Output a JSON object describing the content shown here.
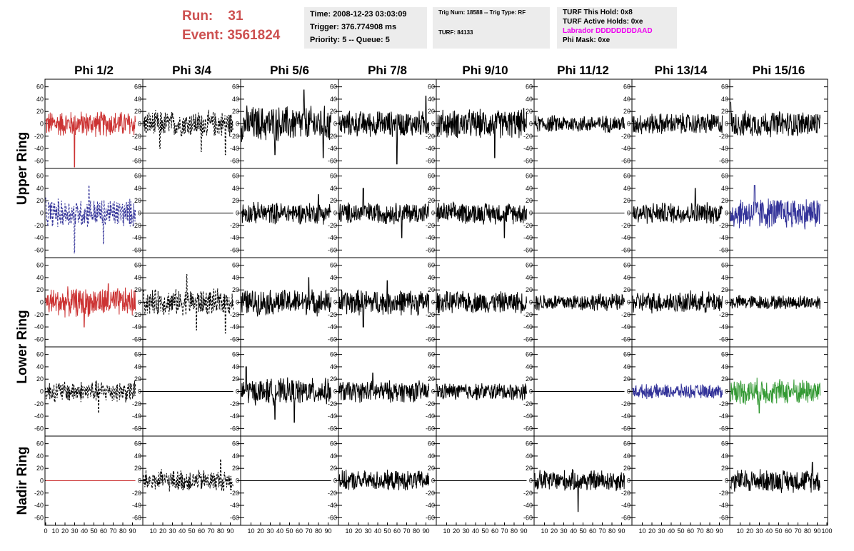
{
  "header": {
    "run_label": "Run:",
    "run_value": "31",
    "event_label": "Event:",
    "event_value": "3561824"
  },
  "info_box_1": {
    "time": "Time: 2008-12-23 03:03:09",
    "trigger": "Trigger: 376.774908 ms",
    "priority": "Priority: 5 -- Queue: 5"
  },
  "info_box_2": {
    "trig": "Trig Num: 18588 -- Trig Type: RF",
    "turf": "TURF: 84133"
  },
  "info_box_3": {
    "this_hold": "TURF This Hold: 0x8",
    "active_holds": "TURF Active Holds: 0xe",
    "labrador": "Labrador DDDDDDDDAAD",
    "phi_mask": "Phi Mask: 0xe",
    "labrador_color": "#ee00ee"
  },
  "chart_data": {
    "type": "line",
    "columns": [
      "Phi 1/2",
      "Phi 3/4",
      "Phi 5/6",
      "Phi 7/8",
      "Phi 9/10",
      "Phi 11/12",
      "Phi 13/14",
      "Phi 15/16"
    ],
    "ring_labels": [
      "Upper Ring",
      "Lower Ring",
      "Nadir Ring"
    ],
    "ylim": [
      -70,
      70
    ],
    "yticks": [
      -60,
      -40,
      -20,
      0,
      20,
      40,
      60
    ],
    "xlim": [
      0,
      100
    ],
    "xticks": [
      0,
      10,
      20,
      30,
      40,
      50,
      60,
      70,
      80,
      90,
      100
    ],
    "colors": {
      "red": "#cc3333",
      "blue": "#333399",
      "green": "#339933",
      "black": "#000000"
    },
    "rows": [
      [
        {
          "color": "red",
          "amp": 18,
          "spikes": [
            [
              30,
              -70
            ]
          ]
        },
        {
          "color": "black",
          "amp": 18,
          "dashed": true,
          "spikes": [
            [
              17,
              -40
            ],
            [
              60,
              -45
            ],
            [
              85,
              -50
            ]
          ]
        },
        {
          "color": "black",
          "amp": 25,
          "spikes": [
            [
              65,
              55
            ],
            [
              85,
              -55
            ],
            [
              35,
              -50
            ]
          ]
        },
        {
          "color": "black",
          "amp": 18,
          "spikes": [
            [
              60,
              -65
            ],
            [
              90,
              45
            ]
          ]
        },
        {
          "color": "black",
          "amp": 20,
          "spikes": [
            [
              60,
              -55
            ],
            [
              90,
              25
            ]
          ]
        },
        {
          "color": "black",
          "amp": 12,
          "spikes": []
        },
        {
          "color": "black",
          "amp": 15,
          "spikes": []
        },
        {
          "color": "black",
          "amp": 18,
          "spikes": [
            [
              0,
              35
            ],
            [
              95,
              -35
            ]
          ]
        }
      ],
      [
        {
          "color": "blue",
          "amp": 20,
          "dashed": true,
          "spikes": [
            [
              30,
              -65
            ],
            [
              45,
              45
            ],
            [
              60,
              -50
            ]
          ]
        },
        {
          "color": "black",
          "amp": 0,
          "flat": true
        },
        {
          "color": "black",
          "amp": 15,
          "spikes": [
            [
              80,
              30
            ]
          ]
        },
        {
          "color": "black",
          "amp": 15,
          "spikes": [
            [
              25,
              40
            ],
            [
              65,
              -40
            ]
          ]
        },
        {
          "color": "black",
          "amp": 15,
          "spikes": [
            [
              70,
              -40
            ],
            [
              95,
              45
            ]
          ]
        },
        {
          "color": "black",
          "amp": 0,
          "flat": true
        },
        {
          "color": "black",
          "amp": 15,
          "spikes": [
            [
              65,
              40
            ]
          ]
        },
        {
          "color": "blue",
          "amp": 22,
          "spikes": [
            [
              25,
              45
            ],
            [
              95,
              -30
            ]
          ]
        }
      ],
      [
        {
          "color": "red",
          "amp": 20,
          "spikes": [
            [
              40,
              -40
            ],
            [
              65,
              30
            ]
          ]
        },
        {
          "color": "black",
          "amp": 18,
          "dashed": true,
          "spikes": [
            [
              45,
              45
            ],
            [
              55,
              -45
            ],
            [
              85,
              -50
            ]
          ]
        },
        {
          "color": "black",
          "amp": 18,
          "spikes": [
            [
              70,
              40
            ]
          ]
        },
        {
          "color": "black",
          "amp": 18,
          "spikes": [
            [
              25,
              -40
            ],
            [
              50,
              35
            ]
          ]
        },
        {
          "color": "black",
          "amp": 15,
          "spikes": []
        },
        {
          "color": "black",
          "amp": 12,
          "spikes": []
        },
        {
          "color": "black",
          "amp": 15,
          "spikes": []
        },
        {
          "color": "black",
          "amp": 10,
          "spikes": []
        }
      ],
      [
        {
          "color": "black",
          "amp": 15,
          "dashed": true,
          "spikes": [
            [
              55,
              -35
            ]
          ]
        },
        {
          "color": "black",
          "amp": 0,
          "flat": true
        },
        {
          "color": "black",
          "amp": 18,
          "spikes": [
            [
              5,
              40
            ],
            [
              35,
              -45
            ],
            [
              55,
              -50
            ]
          ]
        },
        {
          "color": "black",
          "amp": 15,
          "spikes": [
            [
              35,
              30
            ]
          ]
        },
        {
          "color": "black",
          "amp": 12,
          "spikes": []
        },
        {
          "color": "black",
          "amp": 0,
          "flat": true
        },
        {
          "color": "blue",
          "amp": 10,
          "spikes": []
        },
        {
          "color": "green",
          "amp": 18,
          "spikes": [
            [
              30,
              -35
            ]
          ]
        }
      ],
      [
        {
          "color": "red",
          "amp": 0,
          "flat": true
        },
        {
          "color": "black",
          "amp": 15,
          "dashed": true,
          "spikes": [
            [
              80,
              35
            ]
          ]
        },
        {
          "color": "black",
          "amp": 0,
          "flat": true
        },
        {
          "color": "black",
          "amp": 14,
          "spikes": []
        },
        {
          "color": "black",
          "amp": 0,
          "flat": true
        },
        {
          "color": "black",
          "amp": 15,
          "spikes": [
            [
              45,
              -50
            ]
          ]
        },
        {
          "color": "black",
          "amp": 0,
          "flat": true
        },
        {
          "color": "black",
          "amp": 16,
          "spikes": [
            [
              85,
              30
            ]
          ]
        }
      ]
    ]
  }
}
